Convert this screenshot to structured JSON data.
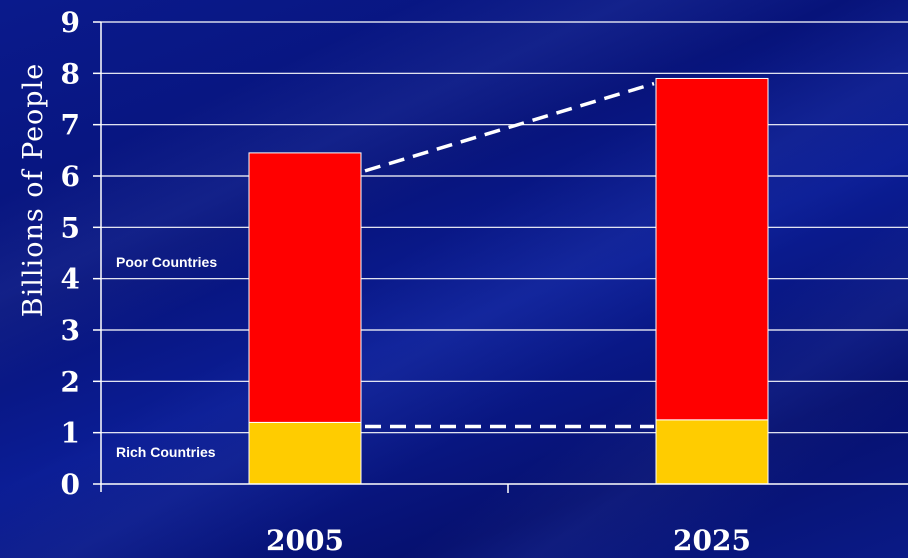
{
  "chart_data": {
    "type": "bar",
    "stacked": true,
    "categories": [
      "2005",
      "2025"
    ],
    "series": [
      {
        "name": "Rich Countries",
        "values": [
          1.2,
          1.25
        ],
        "color": "#ffcc00"
      },
      {
        "name": "Poor Countries",
        "values": [
          5.25,
          6.65
        ],
        "color": "#ff0000"
      }
    ],
    "ylabel": "Billions of People",
    "ylim": [
      0,
      9
    ],
    "yticks": [
      "0",
      "1",
      "2",
      "3",
      "4",
      "5",
      "6",
      "7",
      "8",
      "9"
    ],
    "grid": true,
    "annotations": [
      {
        "text": "Poor Countries"
      },
      {
        "text": "Rich Countries"
      }
    ],
    "dashed_lines": [
      {
        "from": {
          "x": "2005",
          "y": 6.1
        },
        "to": {
          "x": "2025",
          "y": 7.8
        }
      },
      {
        "from": {
          "x": "2005",
          "y": 1.12
        },
        "to": {
          "x": "2025",
          "y": 1.12
        }
      }
    ],
    "colors": {
      "background": "#0a1a8c",
      "grid": "#ffffff",
      "text": "#ffffff"
    }
  }
}
